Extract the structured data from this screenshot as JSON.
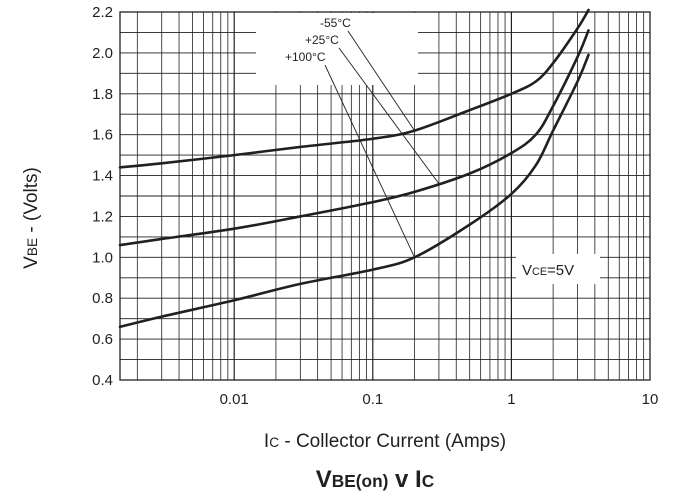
{
  "chart_data": {
    "type": "line",
    "title_main": "V",
    "title_main_sub": "BE(on)",
    "title_mid": " v I",
    "title_mid_sub": "C",
    "xlabel_main": "I",
    "xlabel_sub": "C",
    "xlabel_rest": " - Collector Current (Amps)",
    "ylabel_main": "V",
    "ylabel_sub": "BE",
    "ylabel_rest": " - (Volts)",
    "x_scale": "log",
    "xlim": [
      0.0015,
      10
    ],
    "ylim": [
      0.4,
      2.2
    ],
    "grid": true,
    "x_ticks": [
      {
        "value": 0.01,
        "label": "0.01"
      },
      {
        "value": 0.1,
        "label": "0.1"
      },
      {
        "value": 1,
        "label": "1"
      },
      {
        "value": 10,
        "label": "10"
      }
    ],
    "y_ticks": [
      {
        "value": 0.4,
        "label": "0.4"
      },
      {
        "value": 0.6,
        "label": "0.6"
      },
      {
        "value": 0.8,
        "label": "0.8"
      },
      {
        "value": 1.0,
        "label": "1.0"
      },
      {
        "value": 1.2,
        "label": "1.2"
      },
      {
        "value": 1.4,
        "label": "1.4"
      },
      {
        "value": 1.6,
        "label": "1.6"
      },
      {
        "value": 1.8,
        "label": "1.8"
      },
      {
        "value": 2.0,
        "label": "2.0"
      },
      {
        "value": 2.2,
        "label": "2.2"
      }
    ],
    "series": [
      {
        "name": "-55°C",
        "x": [
          0.0015,
          0.003,
          0.01,
          0.03,
          0.1,
          0.2,
          0.5,
          1.0,
          1.5,
          2.0,
          3.0,
          3.6
        ],
        "y": [
          1.44,
          1.46,
          1.5,
          1.54,
          1.58,
          1.62,
          1.72,
          1.8,
          1.86,
          1.95,
          2.12,
          2.21
        ]
      },
      {
        "name": "+25°C",
        "x": [
          0.0015,
          0.003,
          0.01,
          0.03,
          0.1,
          0.2,
          0.5,
          1.0,
          1.5,
          2.0,
          3.0,
          3.6
        ],
        "y": [
          1.06,
          1.09,
          1.14,
          1.2,
          1.27,
          1.32,
          1.41,
          1.51,
          1.6,
          1.74,
          1.98,
          2.11
        ]
      },
      {
        "name": "+100°C",
        "x": [
          0.0015,
          0.003,
          0.01,
          0.03,
          0.1,
          0.2,
          0.5,
          1.0,
          1.5,
          2.0,
          3.0,
          3.6
        ],
        "y": [
          0.66,
          0.71,
          0.79,
          0.87,
          0.94,
          1.0,
          1.16,
          1.31,
          1.45,
          1.62,
          1.86,
          1.99
        ]
      }
    ],
    "annotations": [
      {
        "text": "-55°C",
        "points_to_series": 0,
        "at_x": 0.2
      },
      {
        "text": "+25°C",
        "points_to_series": 1,
        "at_x": 0.3
      },
      {
        "text": "+100°C",
        "points_to_series": 2,
        "at_x": 0.2
      }
    ],
    "condition_main": "V",
    "condition_sub": "CE",
    "condition_rest": "=5V"
  }
}
